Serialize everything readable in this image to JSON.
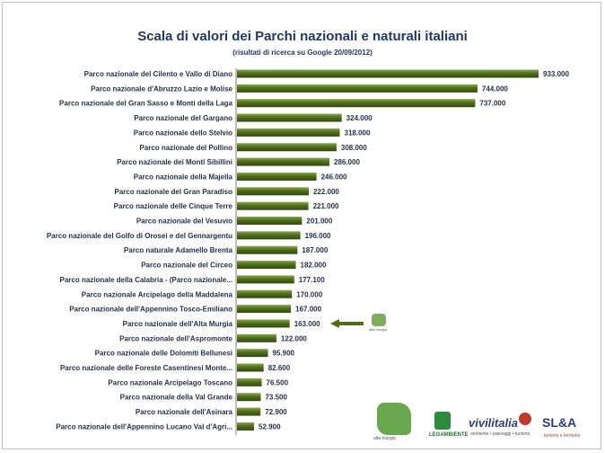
{
  "chart_data": {
    "type": "bar",
    "orientation": "horizontal",
    "title": "Scala di valori dei Parchi nazionali e naturali italiani",
    "subtitle": "(risultati di ricerca su Google 20/09/2012)",
    "categories": [
      "Parco nazionale del Cilento e Vallo di Diano",
      "Parco nazionale d'Abruzzo Lazio e Molise",
      "Parco nazionale del Gran Sasso e Monti della Laga",
      "Parco nazionale del Gargano",
      "Parco nazionale dello Stelvio",
      "Parco nazionale del Pollino",
      "Parco nazionale dei Monti Sibillini",
      "Parco nazionale della Majella",
      "Parco nazionale del Gran Paradiso",
      "Parco nazionale delle Cinque Terre",
      "Parco nazionale del Vesuvio",
      "Parco nazionale del Golfo di Orosei e del Gennargentu",
      "Parco naturale Adamello Brenta",
      "Parco nazionale del Circeo",
      "Parco nazionale della Calabria - (Parco nazionale...",
      "Parco nazionale Arcipelago della Maddalena",
      "Parco nazionale dell'Appennino Tosco-Emiliano",
      "Parco nazionale dell'Alta Murgia",
      "Parco nazionale dell'Aspromonte",
      "Parco nazionale delle Dolomiti Bellunesi",
      "Parco nazionale delle Foreste Casentinesi Monte...",
      "Parco nazionale Arcipelago Toscano",
      "Parco nazionale della Val Grande",
      "Parco nazionale dell'Asinara",
      "Parco nazionale dell'Appennino Lucano Val d'Agri..."
    ],
    "values": [
      933000,
      744000,
      737000,
      324000,
      318000,
      308000,
      286000,
      246000,
      222000,
      221000,
      201000,
      196000,
      187000,
      182000,
      177100,
      170000,
      167000,
      163000,
      122000,
      95900,
      82600,
      76500,
      73500,
      72900,
      52900
    ],
    "value_labels": [
      "933.000",
      "744.000",
      "737.000",
      "324.000",
      "318.000",
      "308.000",
      "286.000",
      "246.000",
      "222.000",
      "221.000",
      "201.000",
      "196.000",
      "187.000",
      "182.000",
      "177.100",
      "170.000",
      "167.000",
      "163.000",
      "122.000",
      "95.900",
      "82.600",
      "76.500",
      "73.500",
      "72.900",
      "52.900"
    ],
    "highlight_category": "Parco nazionale dell'Alta Murgia",
    "xlim": [
      0,
      933000
    ],
    "grid": false,
    "legend": "none",
    "colors": {
      "bar": "#3d5c14",
      "bar_light": "#7a9a3a",
      "arrow": "#4f6b1c",
      "title": "#1f3864"
    }
  },
  "logos": {
    "altamurgia": "alta murgia",
    "legambiente": "LEGAMBIENTE",
    "vivilitalia": "vivilitalia",
    "vivilitalia_tag": "ambiente • paesaggi • turismo",
    "sla": "SL&A",
    "sla_tag": "turismo e territorio"
  }
}
